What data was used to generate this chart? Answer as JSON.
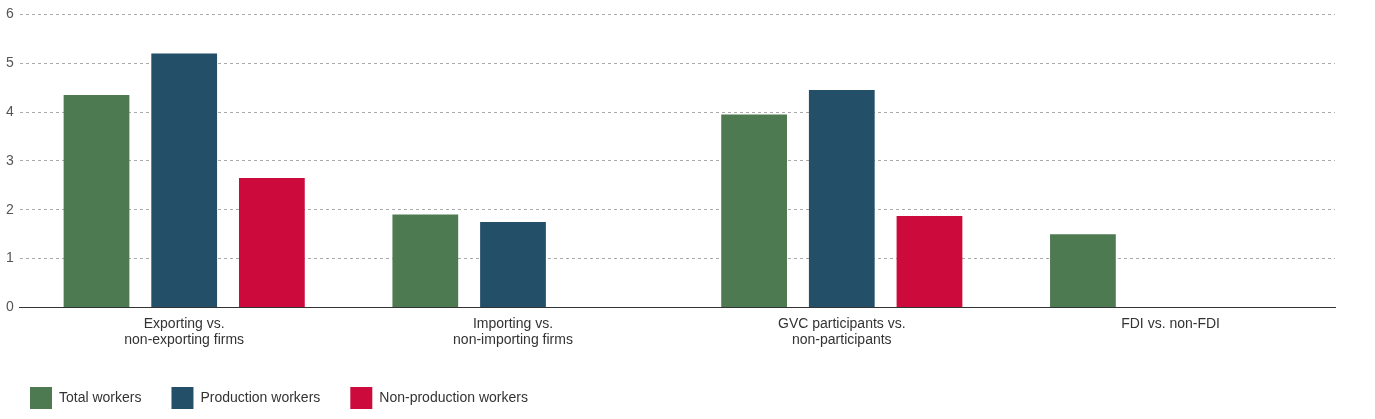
{
  "chart_data": {
    "type": "bar",
    "categories": [
      "Exporting vs. non-exporting firms",
      "Importing vs. non-importing firms",
      "GVC participants vs. non-participants",
      "FDI vs. non-FDI"
    ],
    "series": [
      {
        "name": "Total workers",
        "color": "#4e7a51",
        "values": [
          4.35,
          1.9,
          3.95,
          1.5
        ]
      },
      {
        "name": "Production workers",
        "color": "#234f68",
        "values": [
          5.2,
          1.75,
          4.45,
          null
        ]
      },
      {
        "name": "Non-production workers",
        "color": "#cc0a3c",
        "values": [
          2.65,
          null,
          1.87,
          null
        ]
      }
    ],
    "ylim": [
      0,
      6
    ],
    "yticks": [
      0,
      1,
      2,
      3,
      4,
      5,
      6
    ],
    "grid": "y",
    "legend": "bottom left"
  }
}
